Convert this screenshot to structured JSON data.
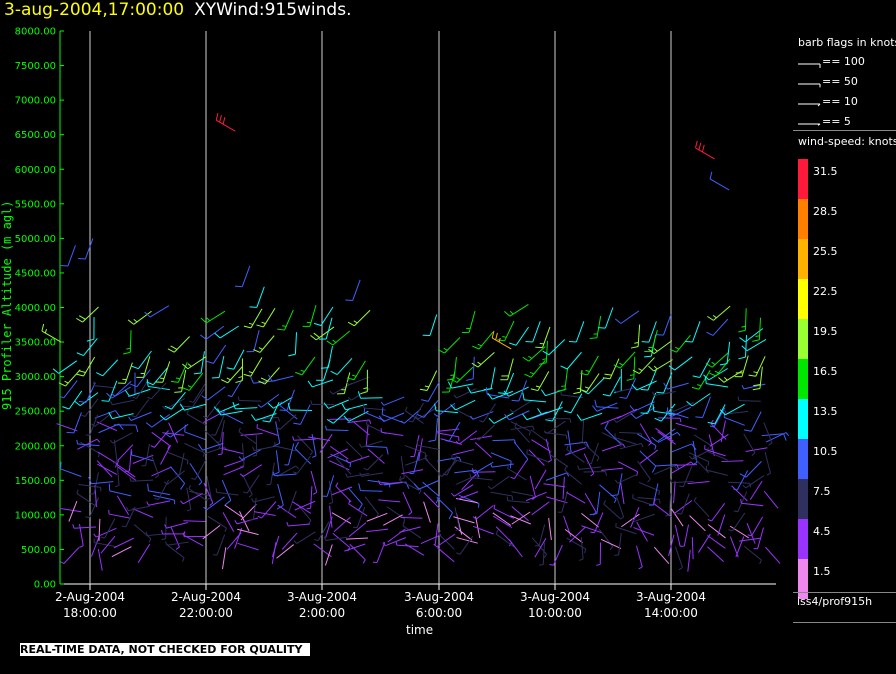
{
  "header": {
    "timestamp": "3-aug-2004,17:00:00",
    "title": "XYWind:915winds."
  },
  "chart_data": {
    "type": "scatter",
    "title": "XYWind:915winds.",
    "xlabel": "time",
    "ylabel": "915 Profiler Altitude (m agl)",
    "ylim": [
      0,
      8000
    ],
    "y_ticks": [
      "0.00",
      "500.00",
      "1000.00",
      "1500.00",
      "2000.00",
      "2500.00",
      "3000.00",
      "3500.00",
      "4000.00",
      "4500.00",
      "5000.00",
      "5500.00",
      "6000.00",
      "6500.00",
      "7000.00",
      "7500.00",
      "8000.00"
    ],
    "x_ticks": [
      {
        "date": "2-Aug-2004",
        "time": "18:00:00"
      },
      {
        "date": "2-Aug-2004",
        "time": "22:00:00"
      },
      {
        "date": "3-Aug-2004",
        "time": "2:00:00"
      },
      {
        "date": "3-Aug-2004",
        "time": "6:00:00"
      },
      {
        "date": "3-Aug-2004",
        "time": "10:00:00"
      },
      {
        "date": "3-Aug-2004",
        "time": "14:00:00"
      }
    ],
    "grid": "vertical",
    "speed_units": "knots",
    "sample_barbs": [
      {
        "time": "2-Aug-2004 17:00",
        "alt": 3500,
        "speed": 19.5
      },
      {
        "time": "2-Aug-2004 22:00",
        "alt": 2300,
        "speed": 7.5
      },
      {
        "time": "2-Aug-2004 23:00",
        "alt": 6550,
        "speed": 31.5
      },
      {
        "time": "3-Aug-2004 8:30",
        "alt": 3400,
        "speed": 25.5
      },
      {
        "time": "3-Aug-2004 15:30",
        "alt": 6150,
        "speed": 31.5
      },
      {
        "time": "3-Aug-2004 16:00",
        "alt": 5700,
        "speed": 10.5
      }
    ]
  },
  "legend": {
    "barb_header": "barb flags in knots",
    "barbs": [
      "== 100",
      "== 50",
      "== 10",
      "== 5"
    ],
    "speed_header": "wind-speed: knots",
    "speed_levels": [
      {
        "label": "31.5",
        "color": "#ff1a3c"
      },
      {
        "label": "28.5",
        "color": "#ff8000"
      },
      {
        "label": "25.5",
        "color": "#ffb300"
      },
      {
        "label": "22.5",
        "color": "#ffff00"
      },
      {
        "label": "19.5",
        "color": "#99ff33"
      },
      {
        "label": "16.5",
        "color": "#00e600"
      },
      {
        "label": "13.5",
        "color": "#00ffff"
      },
      {
        "label": "10.5",
        "color": "#3f5fff"
      },
      {
        "label": "7.5",
        "color": "#303060"
      },
      {
        "label": "4.5",
        "color": "#9933ff"
      },
      {
        "label": "1.5",
        "color": "#ee88ee"
      }
    ],
    "source": "iss4/prof915h"
  },
  "footer": {
    "disclaimer": "REAL-TIME DATA, NOT CHECKED FOR QUALITY"
  }
}
